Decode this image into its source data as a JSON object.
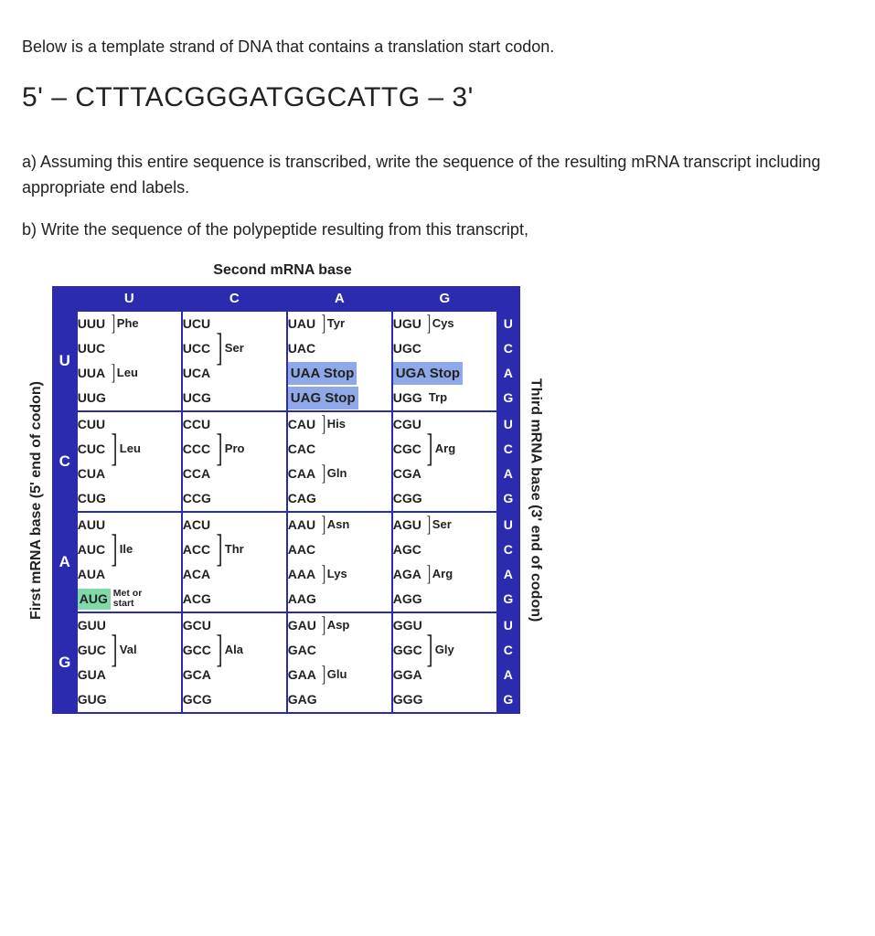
{
  "intro": "Below is a template strand of DNA that contains a translation start codon.",
  "dna_sequence": "5' – CTTTACGGGATGGCATTG – 3'",
  "qa": "a) Assuming this entire sequence is transcribed, write the sequence of the resulting mRNA transcript including appropriate end labels.",
  "qb": "b) Write the sequence of the polypeptide resulting from this transcript,",
  "table": {
    "top_label": "Second mRNA base",
    "left_label": "First mRNA base  (5' end of codon)",
    "right_label": "Third mRNA base  (3' end of codon)",
    "col_headers": [
      "U",
      "C",
      "A",
      "G"
    ],
    "row_headers": [
      "U",
      "C",
      "A",
      "G"
    ],
    "third_base": [
      "U",
      "C",
      "A",
      "G"
    ],
    "colors": {
      "header_bg": "#2b2bb0",
      "header_fg": "#ffffff",
      "stop_bg": "#8fa8e8",
      "met_bg": "#7fd9a8",
      "border": "#2b2bb0",
      "dashed": "#666666"
    },
    "cells": {
      "UU": {
        "codons": [
          "UUU",
          "UUC",
          "UUA",
          "UUG"
        ],
        "aa": [
          [
            "Phe",
            0,
            1
          ],
          [
            "Leu",
            2,
            3
          ]
        ]
      },
      "UC": {
        "codons": [
          "UCU",
          "UCC",
          "UCA",
          "UCG"
        ],
        "aa": [
          [
            "Ser",
            0,
            3
          ]
        ]
      },
      "UA": {
        "codons": [
          "UAU",
          "UAC",
          "UAA",
          "UAG"
        ],
        "aa": [
          [
            "Tyr",
            0,
            1
          ]
        ],
        "stops": [
          [
            "UAA",
            "Stop"
          ],
          [
            "UAG",
            "Stop"
          ]
        ]
      },
      "UG": {
        "codons": [
          "UGU",
          "UGC",
          "UGA",
          "UGG"
        ],
        "aa": [
          [
            "Cys",
            0,
            1
          ]
        ],
        "stops": [
          [
            "UGA",
            "Stop"
          ]
        ],
        "singles": [
          [
            "UGG",
            "Trp",
            3
          ]
        ]
      },
      "CU": {
        "codons": [
          "CUU",
          "CUC",
          "CUA",
          "CUG"
        ],
        "aa": [
          [
            "Leu",
            0,
            3
          ]
        ]
      },
      "CC": {
        "codons": [
          "CCU",
          "CCC",
          "CCA",
          "CCG"
        ],
        "aa": [
          [
            "Pro",
            0,
            3
          ]
        ]
      },
      "CA": {
        "codons": [
          "CAU",
          "CAC",
          "CAA",
          "CAG"
        ],
        "aa": [
          [
            "His",
            0,
            1
          ],
          [
            "Gln",
            2,
            3
          ]
        ]
      },
      "CG": {
        "codons": [
          "CGU",
          "CGC",
          "CGA",
          "CGG"
        ],
        "aa": [
          [
            "Arg",
            0,
            3
          ]
        ]
      },
      "AU": {
        "codons": [
          "AUU",
          "AUC",
          "AUA",
          "AUG"
        ],
        "aa": [
          [
            "Ile",
            0,
            2
          ]
        ],
        "met": [
          "AUG",
          "Met or start",
          3
        ]
      },
      "AC": {
        "codons": [
          "ACU",
          "ACC",
          "ACA",
          "ACG"
        ],
        "aa": [
          [
            "Thr",
            0,
            3
          ]
        ]
      },
      "AA": {
        "codons": [
          "AAU",
          "AAC",
          "AAA",
          "AAG"
        ],
        "aa": [
          [
            "Asn",
            0,
            1
          ],
          [
            "Lys",
            2,
            3
          ]
        ]
      },
      "AG": {
        "codons": [
          "AGU",
          "AGC",
          "AGA",
          "AGG"
        ],
        "aa": [
          [
            "Ser",
            0,
            1
          ],
          [
            "Arg",
            2,
            3
          ]
        ]
      },
      "GU": {
        "codons": [
          "GUU",
          "GUC",
          "GUA",
          "GUG"
        ],
        "aa": [
          [
            "Val",
            0,
            3
          ]
        ]
      },
      "GC": {
        "codons": [
          "GCU",
          "GCC",
          "GCA",
          "GCG"
        ],
        "aa": [
          [
            "Ala",
            0,
            3
          ]
        ]
      },
      "GA": {
        "codons": [
          "GAU",
          "GAC",
          "GAA",
          "GAG"
        ],
        "aa": [
          [
            "Asp",
            0,
            1
          ],
          [
            "Glu",
            2,
            3
          ]
        ]
      },
      "GG": {
        "codons": [
          "GGU",
          "GGC",
          "GGA",
          "GGG"
        ],
        "aa": [
          [
            "Gly",
            0,
            3
          ]
        ]
      }
    }
  }
}
